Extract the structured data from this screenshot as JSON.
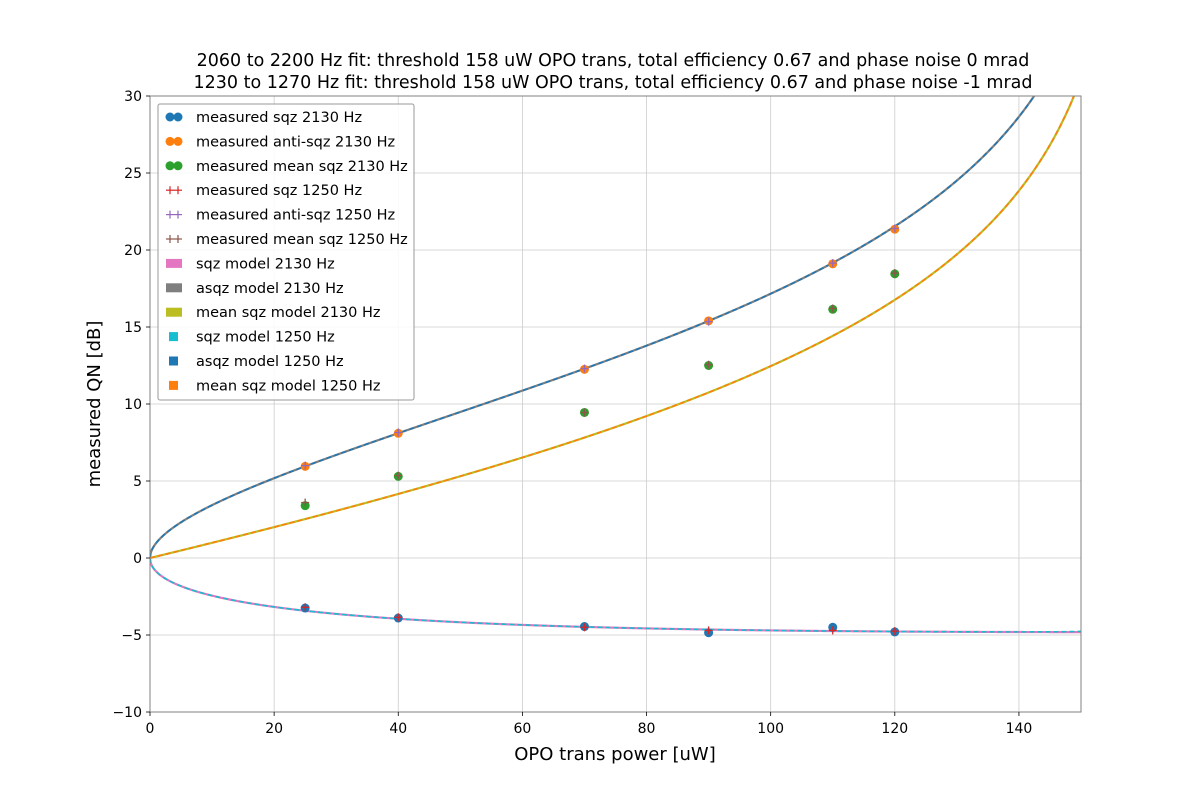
{
  "chart_data": {
    "type": "scatter",
    "title_lines": [
      "2060 to 2200 Hz fit: threshold 158 uW OPO trans, total efficiency 0.67 and phase noise 0 mrad",
      "1230 to 1270 Hz fit: threshold 158 uW OPO trans, total efficiency 0.67 and phase noise -1 mrad"
    ],
    "xlabel": "OPO trans power [uW]",
    "ylabel": "measured QN [dB]",
    "xlim": [
      0,
      150
    ],
    "ylim": [
      -10,
      30
    ],
    "xticks": [
      0,
      20,
      40,
      60,
      80,
      100,
      120,
      140
    ],
    "yticks": [
      -10,
      -5,
      0,
      5,
      10,
      15,
      20,
      25,
      30
    ],
    "grid": true,
    "legend_position": "top-left",
    "model_params": {
      "threshold_uW": 158,
      "total_efficiency": 0.67,
      "phase_noise_mrad_2130": 0,
      "phase_noise_mrad_1250": -1
    },
    "series": [
      {
        "name": "measured sqz 2130 Hz",
        "kind": "dots",
        "color": "#1f77b4",
        "x": [
          25,
          40,
          70,
          90,
          110,
          120
        ],
        "y": [
          -3.25,
          -3.9,
          -4.45,
          -4.85,
          -4.5,
          -4.8
        ]
      },
      {
        "name": "measured anti-sqz 2130 Hz",
        "kind": "dots",
        "color": "#ff7f0e",
        "x": [
          25,
          40,
          70,
          90,
          110,
          120
        ],
        "y": [
          5.95,
          8.1,
          12.25,
          15.4,
          19.1,
          21.35
        ]
      },
      {
        "name": "measured mean sqz 2130 Hz",
        "kind": "dots",
        "color": "#2ca02c",
        "x": [
          25,
          40,
          70,
          90,
          110,
          120
        ],
        "y": [
          3.4,
          5.3,
          9.45,
          12.5,
          16.15,
          18.45
        ]
      },
      {
        "name": "measured sqz 1250 Hz",
        "kind": "plus",
        "color": "#d62728",
        "x": [
          25,
          40,
          70,
          90,
          110,
          120
        ],
        "y": [
          -3.2,
          -3.85,
          -4.5,
          -4.7,
          -4.7,
          -4.75
        ]
      },
      {
        "name": "measured anti-sqz 1250 Hz",
        "kind": "plus",
        "color": "#9467bd",
        "x": [
          25,
          40,
          70,
          90,
          110,
          120
        ],
        "y": [
          6.0,
          8.15,
          12.3,
          15.35,
          19.15,
          21.4
        ]
      },
      {
        "name": "measured mean sqz 1250 Hz",
        "kind": "plus",
        "color": "#8c564b",
        "x": [
          25,
          40,
          70,
          90,
          110,
          120
        ],
        "y": [
          3.6,
          5.35,
          9.45,
          12.55,
          16.2,
          18.5
        ]
      },
      {
        "name": "sqz model 2130 Hz",
        "kind": "line",
        "color": "#e377c2",
        "model": "sqz"
      },
      {
        "name": "asqz model 2130 Hz",
        "kind": "line",
        "color": "#7f7f7f",
        "model": "asqz"
      },
      {
        "name": "mean sqz model 2130 Hz",
        "kind": "line",
        "color": "#bcbd22",
        "model": "mean"
      },
      {
        "name": "sqz model 1250 Hz",
        "kind": "dashed",
        "color": "#17becf",
        "model": "sqz"
      },
      {
        "name": "asqz model 1250 Hz",
        "kind": "dashed",
        "color": "#1f77b4",
        "model": "asqz"
      },
      {
        "name": "mean sqz model 1250 Hz",
        "kind": "dashed",
        "color": "#ff7f0e",
        "model": "mean"
      }
    ]
  }
}
